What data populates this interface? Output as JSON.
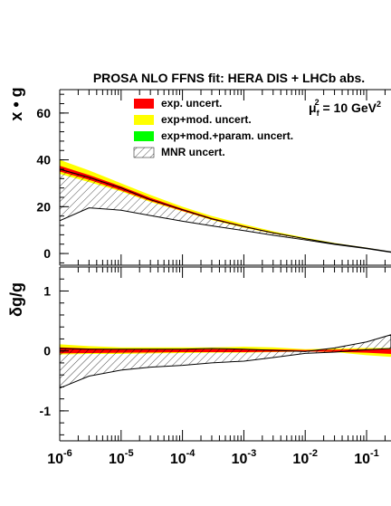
{
  "chart_data": [
    {
      "panel": "top",
      "type": "area",
      "title": "PROSA NLO FFNS fit: HERA DIS + LHCb abs.",
      "ylabel": "x • g",
      "annotation": {
        "mu": "μ",
        "sub": "f",
        "sup": "2",
        "value": " = 10 GeV",
        "unit_sup": "2"
      },
      "x_scale": "log",
      "xlim": [
        1e-06,
        0.25
      ],
      "ylim": [
        -5,
        70
      ],
      "yticks": [
        0,
        20,
        40,
        60
      ],
      "ytick_labels": [
        "0",
        "20",
        "40",
        "60"
      ],
      "legend_placement": "top-center",
      "legend": [
        {
          "label": "exp. uncert.",
          "color": "#ff0000",
          "hatch": false
        },
        {
          "label": "exp+mod. uncert.",
          "color": "#ffff00",
          "hatch": false
        },
        {
          "label": "exp+mod.+param. uncert.",
          "color": "#00ff00",
          "hatch": false
        },
        {
          "label": "MNR uncert.",
          "color": "#ffffff",
          "hatch": true
        }
      ],
      "x": [
        1e-06,
        3e-06,
        1e-05,
        3e-05,
        0.0001,
        0.0003,
        0.001,
        0.003,
        0.01,
        0.03,
        0.1,
        0.25
      ],
      "series": [
        {
          "name": "exp+mod. uncert.",
          "color": "#ffff00",
          "lower": [
            34.0,
            30.5,
            26.5,
            22.0,
            18.0,
            14.3,
            11.0,
            8.5,
            6.0,
            4.0,
            2.2,
            0.6
          ],
          "upper": [
            40.0,
            35.5,
            30.0,
            25.0,
            20.0,
            16.0,
            12.5,
            9.5,
            6.8,
            4.5,
            2.5,
            0.8
          ]
        },
        {
          "name": "exp. uncert.",
          "color": "#ff0000",
          "lower": [
            35.0,
            31.5,
            27.0,
            22.5,
            18.2,
            14.5,
            11.3,
            8.6,
            6.1,
            4.1,
            2.25,
            0.65
          ],
          "upper": [
            37.5,
            33.5,
            28.7,
            23.8,
            19.1,
            15.2,
            11.8,
            9.0,
            6.4,
            4.3,
            2.4,
            0.75
          ]
        },
        {
          "name": "MNR uncert.",
          "hatch": true,
          "lower": [
            14.0,
            19.5,
            18.5,
            16.2,
            13.8,
            11.8,
            9.8,
            7.8,
            5.8,
            3.9,
            2.1,
            0.5
          ],
          "upper": [
            36.0,
            32.5,
            28.0,
            23.0,
            18.7,
            14.8,
            11.5,
            8.8,
            6.3,
            4.2,
            2.3,
            0.7
          ]
        }
      ]
    },
    {
      "panel": "bottom",
      "type": "area",
      "ylabel": "δg/g",
      "x_scale": "log",
      "xlim": [
        1e-06,
        0.25
      ],
      "ylim": [
        -1.5,
        1.4
      ],
      "yticks": [
        -1,
        0,
        1
      ],
      "ytick_labels": [
        "-1",
        "0",
        "1"
      ],
      "xtick_labels": [
        {
          "base": "10",
          "exp": "-6"
        },
        {
          "base": "10",
          "exp": "-5"
        },
        {
          "base": "10",
          "exp": "-4"
        },
        {
          "base": "10",
          "exp": "-3"
        },
        {
          "base": "10",
          "exp": "-2"
        },
        {
          "base": "10",
          "exp": "-1"
        }
      ],
      "x": [
        1e-06,
        3e-06,
        1e-05,
        3e-05,
        0.0001,
        0.0003,
        0.001,
        0.003,
        0.01,
        0.03,
        0.1,
        0.25
      ],
      "series": [
        {
          "name": "exp+mod. uncert.",
          "color": "#ffff00",
          "lower": [
            -0.06,
            -0.05,
            -0.05,
            -0.04,
            -0.035,
            -0.03,
            -0.03,
            -0.02,
            -0.01,
            -0.02,
            -0.07,
            -0.1
          ],
          "upper": [
            0.11,
            0.08,
            0.06,
            0.06,
            0.06,
            0.06,
            0.07,
            0.06,
            0.03,
            0.04,
            0.05,
            0.05
          ]
        },
        {
          "name": "exp. uncert.",
          "color": "#ff0000",
          "lower": [
            -0.04,
            -0.035,
            -0.03,
            -0.025,
            -0.02,
            -0.02,
            -0.02,
            -0.015,
            -0.01,
            -0.015,
            -0.03,
            -0.05
          ],
          "upper": [
            0.06,
            0.04,
            0.03,
            0.03,
            0.03,
            0.03,
            0.03,
            0.025,
            0.015,
            0.02,
            0.03,
            0.03
          ]
        },
        {
          "name": "MNR uncert.",
          "hatch": true,
          "lower": [
            -0.62,
            -0.42,
            -0.32,
            -0.27,
            -0.24,
            -0.2,
            -0.17,
            -0.11,
            -0.04,
            -0.02,
            0.02,
            0.04
          ],
          "upper": [
            0.04,
            0.03,
            0.03,
            0.03,
            0.03,
            0.04,
            0.03,
            0.01,
            -0.01,
            0.05,
            0.15,
            0.27
          ]
        }
      ]
    }
  ]
}
